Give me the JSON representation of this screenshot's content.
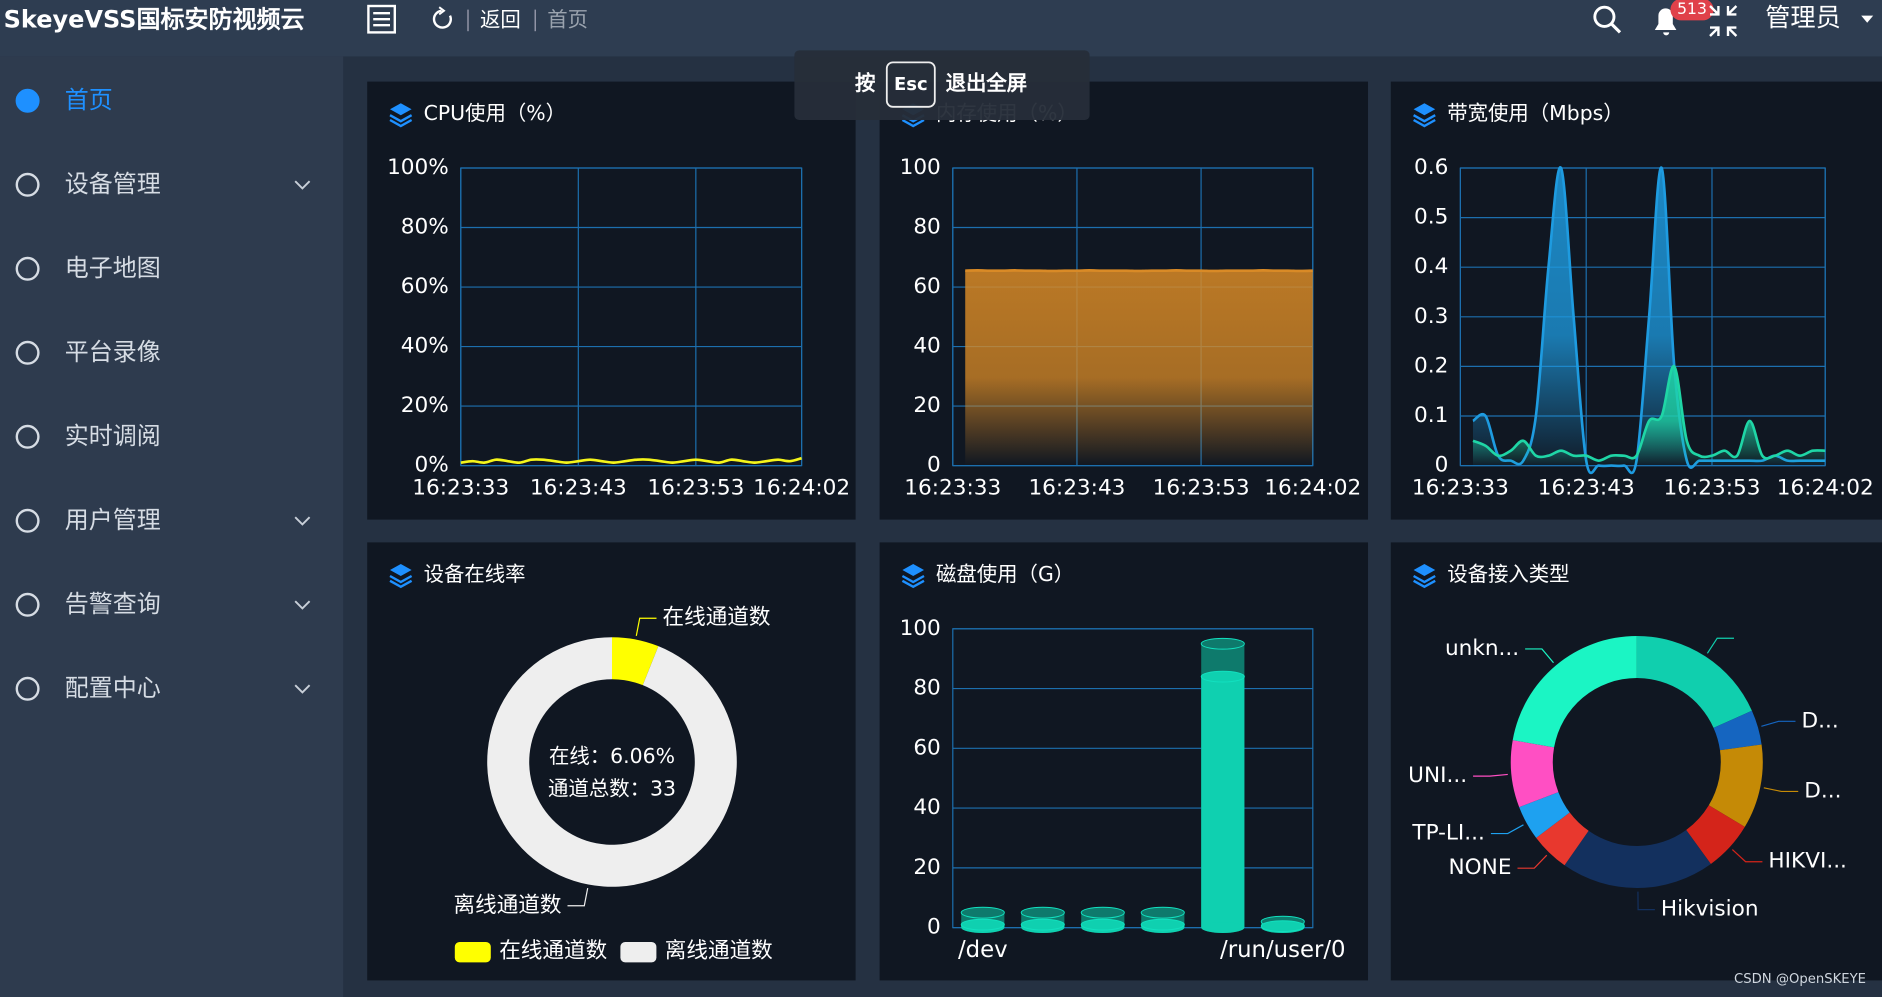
{
  "header": {
    "brand": "SkeyeVSS国标安防视频云",
    "nav": [
      "返回",
      "首页"
    ],
    "badge": "513",
    "user": "管理员"
  },
  "toast": {
    "prefix": "按",
    "key": "Esc",
    "text": "退出全屏"
  },
  "sidebar": [
    "首页",
    "设备管理",
    "电子地图",
    "平台录像",
    "实时调阅",
    "用户管理",
    "告警查询",
    "配置中心"
  ],
  "watermark": "CSDN @OpenSKEYE",
  "chart_data": [
    {
      "type": "line",
      "title": "CPU使用（%）",
      "categories": [
        "16:23:33",
        null,
        null,
        null,
        null,
        null,
        null,
        null,
        null,
        null,
        "16:23:43",
        null,
        null,
        null,
        null,
        null,
        null,
        null,
        null,
        null,
        "16:23:53",
        null,
        null,
        null,
        null,
        null,
        null,
        null,
        null,
        "16:24:02"
      ],
      "series": [
        {
          "color": "#f5f51a",
          "values": [
            1,
            1.5,
            1,
            2,
            1.5,
            1,
            2,
            2,
            1.5,
            1,
            1.5,
            2,
            1.5,
            1,
            1.5,
            2,
            2,
            1.5,
            1,
            1.5,
            2,
            1.5,
            1,
            2,
            1.5,
            1,
            1.5,
            2,
            1.5,
            2.5
          ]
        }
      ],
      "ylim": [
        0,
        100
      ],
      "yticks": [
        {
          "value": 0,
          "label": "0%"
        },
        {
          "value": 20,
          "label": "20%"
        },
        {
          "value": 40,
          "label": "40%"
        },
        {
          "value": 60,
          "label": "60%"
        },
        {
          "value": 80,
          "label": "80%"
        },
        {
          "value": 100,
          "label": "100%"
        }
      ],
      "grid": true
    },
    {
      "type": "line",
      "title": "内存使用（%）",
      "categories": [
        "16:23:33",
        null,
        null,
        null,
        null,
        null,
        null,
        null,
        null,
        null,
        "16:23:43",
        null,
        null,
        null,
        null,
        null,
        null,
        null,
        null,
        null,
        "16:23:53",
        null,
        null,
        null,
        null,
        null,
        null,
        null,
        null,
        "16:24:02"
      ],
      "series": [
        {
          "color": "#d98a26",
          "area": true,
          "values": [
            null,
            65.5,
            65.6,
            65.5,
            65.5,
            65.6,
            65.5,
            65.5,
            65.4,
            65.5,
            65.5,
            65.6,
            65.5,
            65.5,
            65.5,
            65.4,
            65.5,
            65.5,
            65.6,
            65.5,
            65.5,
            65.4,
            65.5,
            65.5,
            65.5,
            65.6,
            65.5,
            65.5,
            65.4,
            65.5
          ]
        }
      ],
      "ylim": [
        0,
        100
      ],
      "yticks": [
        0,
        20,
        40,
        60,
        80,
        100
      ],
      "grid": true
    },
    {
      "type": "line",
      "title": "带宽使用（Mbps）",
      "categories": [
        "16:23:33",
        null,
        null,
        null,
        null,
        null,
        null,
        null,
        null,
        null,
        "16:23:43",
        null,
        null,
        null,
        null,
        null,
        null,
        null,
        null,
        null,
        "16:23:53",
        null,
        null,
        null,
        null,
        null,
        null,
        null,
        null,
        "16:24:02"
      ],
      "series": [
        {
          "color": "#1e9be0",
          "area": true,
          "values": [
            null,
            0.09,
            0.1,
            0.02,
            0.01,
            0.01,
            0.1,
            0.4,
            0.6,
            0.3,
            0.01,
            0,
            0,
            0,
            0.01,
            0.3,
            0.6,
            0.2,
            0.01,
            0.01,
            0.01,
            0.01,
            0.01,
            0.01,
            0.01,
            0.02,
            0.01,
            0.01,
            0.01,
            0.01
          ]
        },
        {
          "color": "#1fd6a6",
          "area": true,
          "values": [
            null,
            0.05,
            0.04,
            0.02,
            0.03,
            0.05,
            0.02,
            0.02,
            0.03,
            0.02,
            0.02,
            0.01,
            0.02,
            0.02,
            0.02,
            0.09,
            0.1,
            0.2,
            0.05,
            0.02,
            0.02,
            0.03,
            0.02,
            0.09,
            0.02,
            0.02,
            0.03,
            0.02,
            0.03,
            0.03
          ]
        }
      ],
      "ylim": [
        0,
        0.6
      ],
      "yticks": [
        0,
        0.1,
        0.2,
        0.3,
        0.4,
        0.5,
        0.6
      ],
      "grid": true
    },
    {
      "type": "pie",
      "title": "设备在线率",
      "categories": [
        "在线通道数",
        "离线通道数"
      ],
      "values": [
        2,
        31
      ],
      "colors": [
        "#ffff00",
        "#eeeeee"
      ],
      "center_text": [
        "在线：6.06%",
        "通道总数：33"
      ],
      "legend": "bottom"
    },
    {
      "type": "bar",
      "title": "磁盘使用（G）",
      "categories": [
        "/dev",
        null,
        null,
        null,
        null,
        "/run/user/0"
      ],
      "series": [
        {
          "color": "#0e7a6c",
          "values": [
            5,
            5,
            5,
            5,
            95,
            2
          ]
        },
        {
          "color": "#0fd0b0",
          "values": [
            1,
            1,
            1,
            1,
            84,
            0.5
          ]
        }
      ],
      "ylim": [
        0,
        100
      ],
      "yticks": [
        0,
        20,
        40,
        60,
        80,
        100
      ],
      "grid": true
    },
    {
      "type": "pie",
      "title": "设备接入类型",
      "categories": [
        null,
        "D...",
        "D...",
        "HIKVI...",
        "Hikvision",
        "NONE",
        "TP-LI...",
        "UNI...",
        "unkn..."
      ],
      "values": [
        66,
        16,
        39,
        23,
        71,
        18,
        16,
        31,
        80
      ],
      "colors": [
        "#10cfae",
        "#1565c0",
        "#c58a06",
        "#d4241a",
        "#13305e",
        "#e8382e",
        "#1ea1f0",
        "#ff4fc3",
        "#1bf5c4"
      ]
    }
  ]
}
